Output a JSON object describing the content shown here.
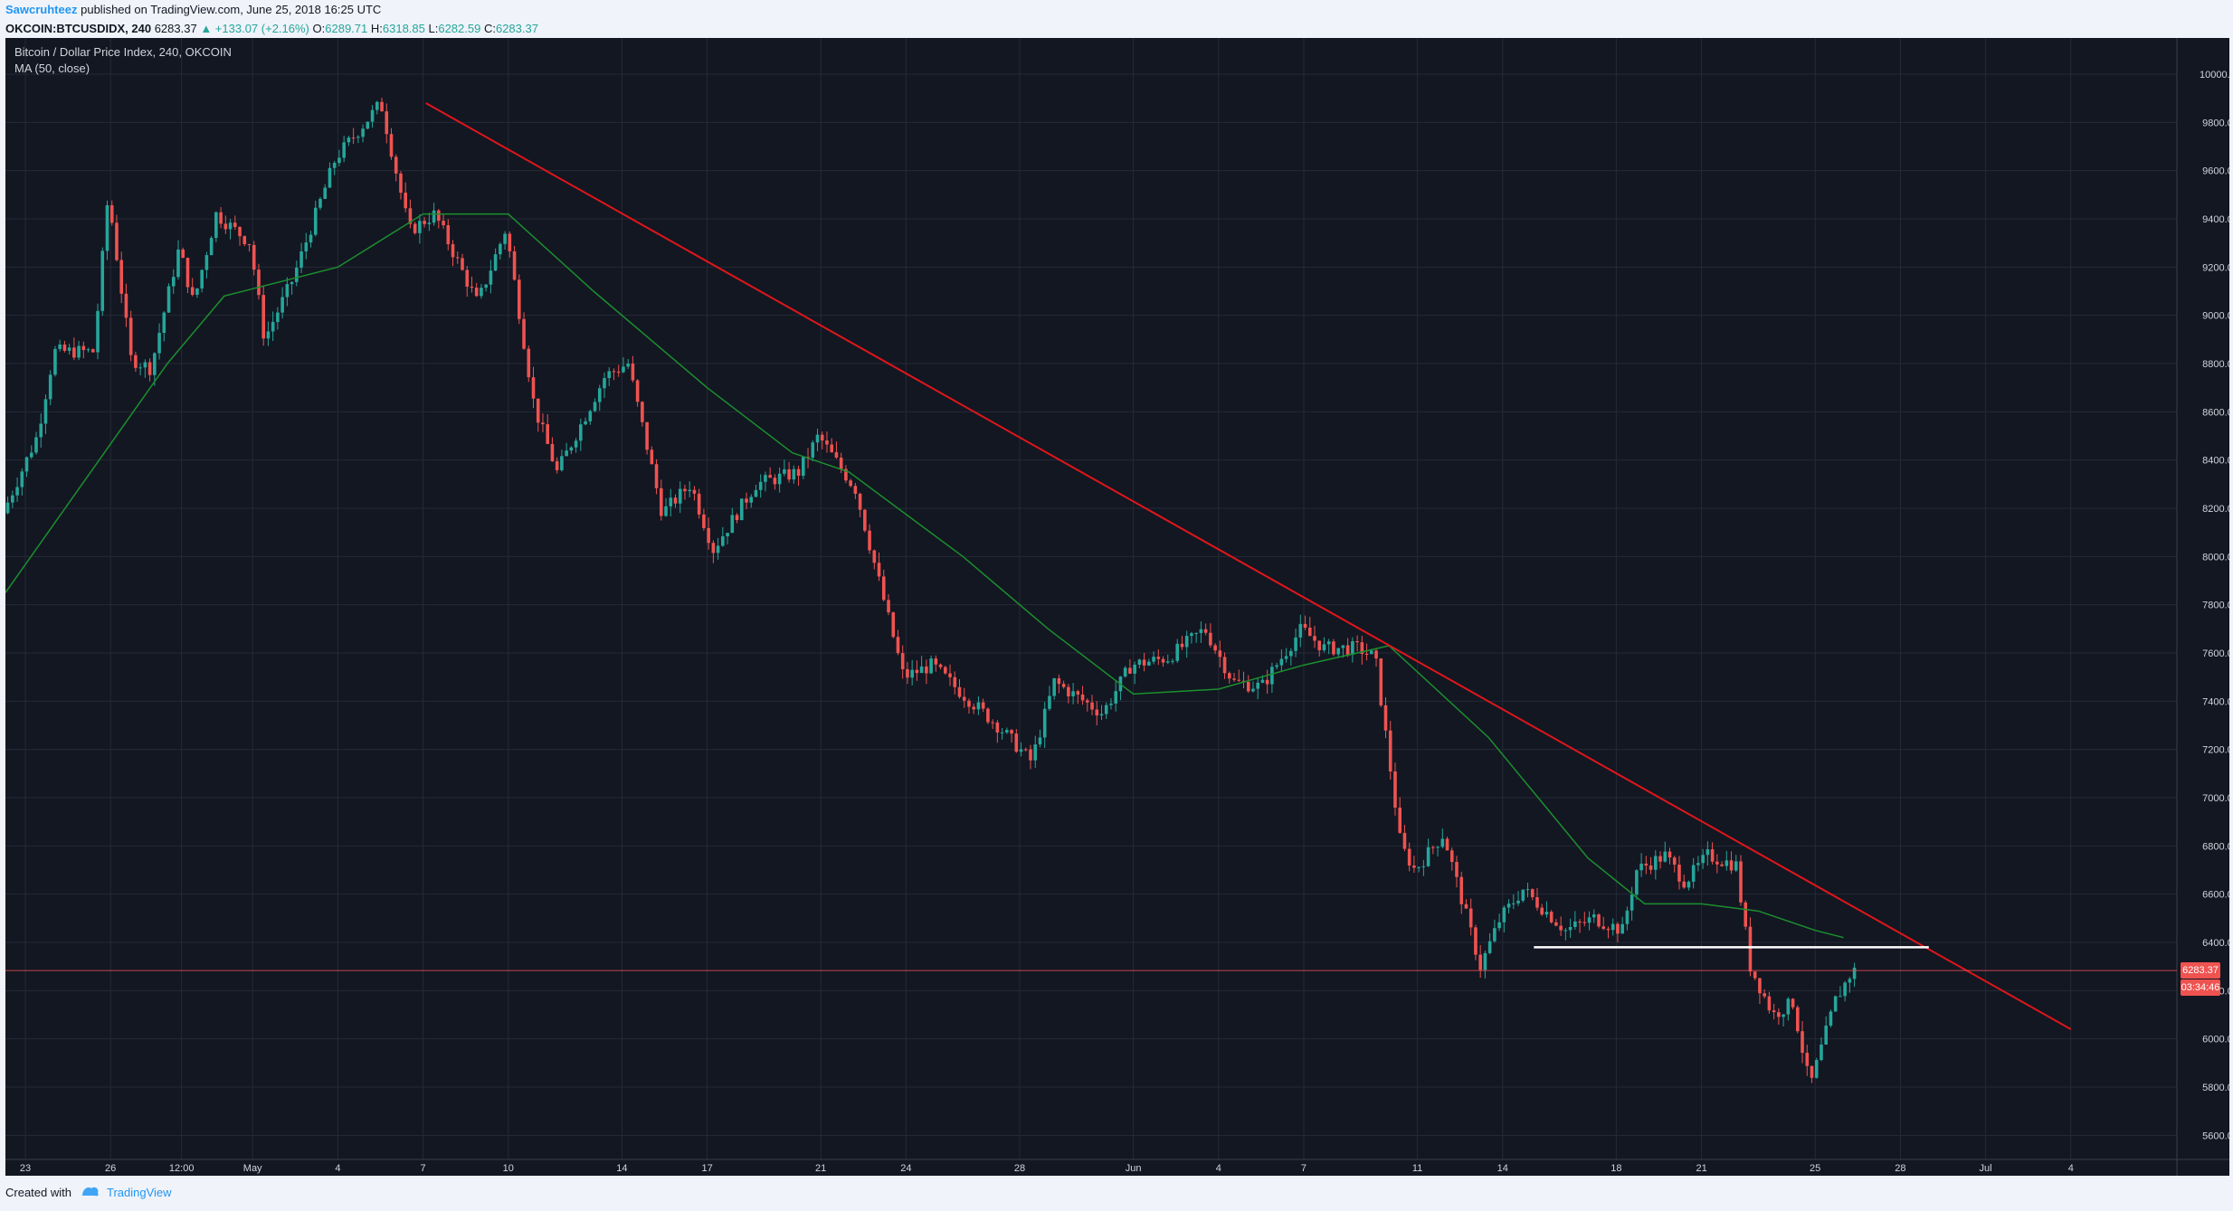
{
  "header": {
    "author": "Sawcruhteez",
    "published_text": "published on TradingView.com, June 25, 2018 16:25 UTC"
  },
  "symbol_bar": {
    "symbol": "OKCOIN:BTCUSDIDX, 240",
    "last": "6283.37",
    "change": "▲ +133.07 (+2.16%)",
    "open_label": "O:",
    "open": "6289.71",
    "high_label": "H:",
    "high": "6318.85",
    "low_label": "L:",
    "low": "6282.59",
    "close_label": "C:",
    "close": "6283.37"
  },
  "legend": {
    "title": "Bitcoin / Dollar Price Index, 240, OKCOIN",
    "indicator": "MA (50, close)"
  },
  "price_tags": {
    "last_price": "6283.37",
    "countdown": "03:34:46"
  },
  "footer": {
    "created_with": "Created with",
    "brand": "TradingView"
  },
  "colors": {
    "background": "#131722",
    "grid": "#252a36",
    "up": "#26a69a",
    "down": "#ef5350",
    "ma": "#1b8f2e",
    "trendline": "#e0161b",
    "support": "#ffffff",
    "axis_text": "#d1d4dc"
  },
  "chart_data": {
    "type": "candlestick",
    "title": "Bitcoin / Dollar Price Index, 240, OKCOIN",
    "ylim": [
      5500,
      10150
    ],
    "y_ticks": [
      "5600.00",
      "5800.00",
      "6000.00",
      "6200.00",
      "6400.00",
      "6600.00",
      "6800.00",
      "7000.00",
      "7200.00",
      "7400.00",
      "7600.00",
      "7800.00",
      "8000.00",
      "8200.00",
      "8400.00",
      "8600.00",
      "8800.00",
      "9000.00",
      "9200.00",
      "9400.00",
      "9600.00",
      "9800.00",
      "10000.00"
    ],
    "x_ticks": [
      {
        "label": "23",
        "day": 0.7
      },
      {
        "label": "26",
        "day": 3.7
      },
      {
        "label": "12:00",
        "day": 6.2
      },
      {
        "label": "May",
        "day": 8.7
      },
      {
        "label": "4",
        "day": 11.7
      },
      {
        "label": "7",
        "day": 14.7
      },
      {
        "label": "10",
        "day": 17.7
      },
      {
        "label": "14",
        "day": 21.7
      },
      {
        "label": "17",
        "day": 24.7
      },
      {
        "label": "21",
        "day": 28.7
      },
      {
        "label": "24",
        "day": 31.7
      },
      {
        "label": "28",
        "day": 35.7
      },
      {
        "label": "Jun",
        "day": 39.7
      },
      {
        "label": "4",
        "day": 42.7
      },
      {
        "label": "7",
        "day": 45.7
      },
      {
        "label": "11",
        "day": 49.7
      },
      {
        "label": "14",
        "day": 52.7
      },
      {
        "label": "18",
        "day": 56.7
      },
      {
        "label": "21",
        "day": 59.7
      },
      {
        "label": "25",
        "day": 63.7
      },
      {
        "label": "28",
        "day": 66.7
      },
      {
        "label": "Jul",
        "day": 69.7
      },
      {
        "label": "4",
        "day": 72.7
      }
    ],
    "key_prices": [
      {
        "day": 0,
        "price": 8180
      },
      {
        "day": 1.2,
        "price": 8500
      },
      {
        "day": 1.8,
        "price": 8850
      },
      {
        "day": 3.2,
        "price": 8850
      },
      {
        "day": 3.7,
        "price": 9500
      },
      {
        "day": 4.5,
        "price": 8820
      },
      {
        "day": 5.2,
        "price": 8780
      },
      {
        "day": 6.2,
        "price": 9280
      },
      {
        "day": 6.7,
        "price": 9050
      },
      {
        "day": 7.5,
        "price": 9420
      },
      {
        "day": 8.7,
        "price": 9300
      },
      {
        "day": 9.2,
        "price": 8900
      },
      {
        "day": 10.2,
        "price": 9150
      },
      {
        "day": 11.7,
        "price": 9650
      },
      {
        "day": 13.3,
        "price": 9880
      },
      {
        "day": 14.3,
        "price": 9350
      },
      {
        "day": 15.2,
        "price": 9420
      },
      {
        "day": 16.7,
        "price": 9050
      },
      {
        "day": 17.7,
        "price": 9360
      },
      {
        "day": 18.7,
        "price": 8620
      },
      {
        "day": 19.5,
        "price": 8350
      },
      {
        "day": 21.2,
        "price": 8750
      },
      {
        "day": 22.0,
        "price": 8800
      },
      {
        "day": 23.2,
        "price": 8180
      },
      {
        "day": 24.2,
        "price": 8300
      },
      {
        "day": 25.0,
        "price": 8030
      },
      {
        "day": 26.5,
        "price": 8300
      },
      {
        "day": 28.0,
        "price": 8350
      },
      {
        "day": 28.7,
        "price": 8500
      },
      {
        "day": 30.0,
        "price": 8280
      },
      {
        "day": 31.0,
        "price": 7820
      },
      {
        "day": 31.7,
        "price": 7500
      },
      {
        "day": 32.7,
        "price": 7550
      },
      {
        "day": 33.5,
        "price": 7460
      },
      {
        "day": 35.0,
        "price": 7300
      },
      {
        "day": 36.2,
        "price": 7150
      },
      {
        "day": 37.0,
        "price": 7480
      },
      {
        "day": 38.7,
        "price": 7350
      },
      {
        "day": 39.7,
        "price": 7550
      },
      {
        "day": 41.0,
        "price": 7580
      },
      {
        "day": 42.3,
        "price": 7700
      },
      {
        "day": 43.3,
        "price": 7480
      },
      {
        "day": 44.3,
        "price": 7460
      },
      {
        "day": 45.7,
        "price": 7700
      },
      {
        "day": 46.5,
        "price": 7620
      },
      {
        "day": 47.7,
        "price": 7620
      },
      {
        "day": 48.3,
        "price": 7580
      },
      {
        "day": 49.2,
        "price": 6800
      },
      {
        "day": 49.7,
        "price": 6700
      },
      {
        "day": 50.7,
        "price": 6850
      },
      {
        "day": 52.0,
        "price": 6300
      },
      {
        "day": 52.7,
        "price": 6500
      },
      {
        "day": 53.5,
        "price": 6620
      },
      {
        "day": 55.0,
        "price": 6450
      },
      {
        "day": 56.0,
        "price": 6500
      },
      {
        "day": 57.0,
        "price": 6450
      },
      {
        "day": 57.5,
        "price": 6700
      },
      {
        "day": 58.5,
        "price": 6760
      },
      {
        "day": 59.2,
        "price": 6650
      },
      {
        "day": 60.0,
        "price": 6760
      },
      {
        "day": 61.0,
        "price": 6720
      },
      {
        "day": 61.5,
        "price": 6300
      },
      {
        "day": 62.3,
        "price": 6100
      },
      {
        "day": 63.0,
        "price": 6150
      },
      {
        "day": 63.6,
        "price": 5800
      },
      {
        "day": 64.5,
        "price": 6160
      },
      {
        "day": 65.1,
        "price": 6283
      }
    ],
    "ma_line": [
      {
        "day": 0,
        "price": 7850
      },
      {
        "day": 2.7,
        "price": 8300
      },
      {
        "day": 5.7,
        "price": 8800
      },
      {
        "day": 7.7,
        "price": 9080
      },
      {
        "day": 11.7,
        "price": 9200
      },
      {
        "day": 14.7,
        "price": 9420
      },
      {
        "day": 17.7,
        "price": 9420
      },
      {
        "day": 20.7,
        "price": 9100
      },
      {
        "day": 24.7,
        "price": 8700
      },
      {
        "day": 27.7,
        "price": 8430
      },
      {
        "day": 29.7,
        "price": 8350
      },
      {
        "day": 33.7,
        "price": 8000
      },
      {
        "day": 36.7,
        "price": 7700
      },
      {
        "day": 39.7,
        "price": 7430
      },
      {
        "day": 42.7,
        "price": 7450
      },
      {
        "day": 45.7,
        "price": 7550
      },
      {
        "day": 48.7,
        "price": 7630
      },
      {
        "day": 52.2,
        "price": 7250
      },
      {
        "day": 55.7,
        "price": 6750
      },
      {
        "day": 57.7,
        "price": 6560
      },
      {
        "day": 59.7,
        "price": 6560
      },
      {
        "day": 61.7,
        "price": 6530
      },
      {
        "day": 63.7,
        "price": 6450
      },
      {
        "day": 64.7,
        "price": 6420
      }
    ],
    "trendline": [
      {
        "day": 14.8,
        "price": 9880
      },
      {
        "day": 72.7,
        "price": 6040
      }
    ],
    "support_line": {
      "price": 6380,
      "from_day": 53.8,
      "to_day": 67.7
    },
    "last_price": 6283.37,
    "grid": true
  }
}
